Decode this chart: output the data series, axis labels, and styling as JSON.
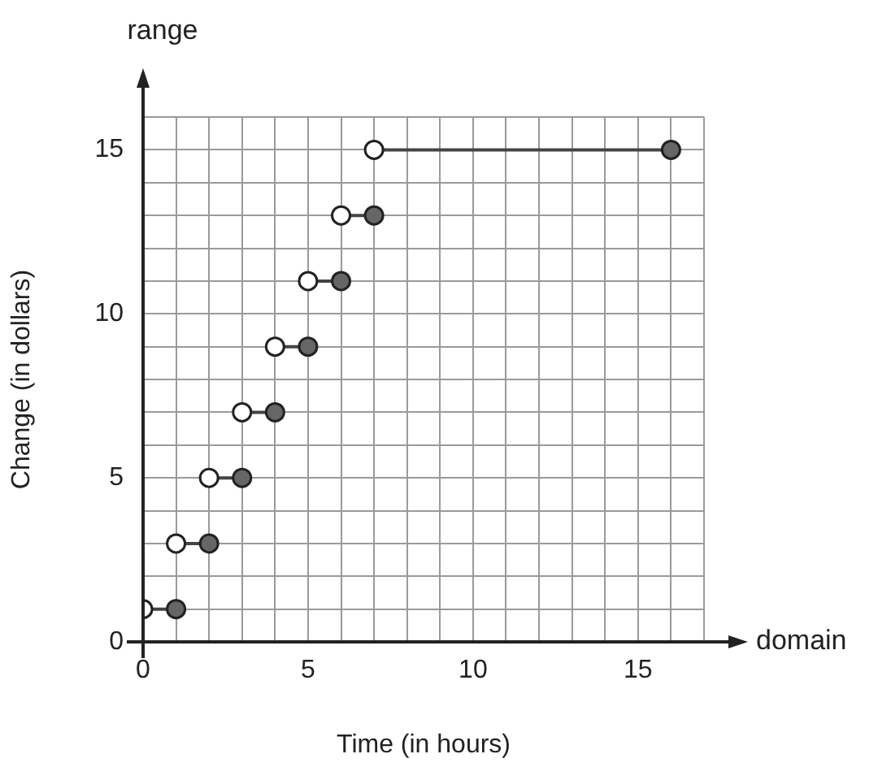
{
  "chart_data": {
    "type": "line",
    "xlabel": "Time (in hours)",
    "ylabel": "Change (in dollars)",
    "annotations": [
      "range",
      "domain"
    ],
    "xlim": [
      0,
      17
    ],
    "ylim": [
      0,
      16
    ],
    "xticks": [
      0,
      {
        "value": 1,
        "label": null
      },
      {
        "value": 2,
        "label": null
      },
      {
        "value": 3,
        "label": null
      },
      {
        "value": 4,
        "label": null
      },
      5,
      {
        "value": 6,
        "label": null
      },
      {
        "value": 7,
        "label": null
      },
      {
        "value": 8,
        "label": null
      },
      {
        "value": 9,
        "label": null
      },
      10,
      {
        "value": 11,
        "label": null
      },
      {
        "value": 12,
        "label": null
      },
      {
        "value": 13,
        "label": null
      },
      {
        "value": 14,
        "label": null
      },
      15,
      {
        "value": 16,
        "label": null
      },
      {
        "value": 17,
        "label": null
      }
    ],
    "yticks": [
      0,
      {
        "value": 1,
        "label": null
      },
      {
        "value": 2,
        "label": null
      },
      {
        "value": 3,
        "label": null
      },
      {
        "value": 4,
        "label": null
      },
      5,
      {
        "value": 6,
        "label": null
      },
      {
        "value": 7,
        "label": null
      },
      {
        "value": 8,
        "label": null
      },
      {
        "value": 9,
        "label": null
      },
      10,
      {
        "value": 11,
        "label": null
      },
      {
        "value": 12,
        "label": null
      },
      {
        "value": 13,
        "label": null
      },
      {
        "value": 14,
        "label": null
      },
      15,
      {
        "value": 16,
        "label": null
      }
    ],
    "grid": true,
    "legend": false,
    "series": [
      {
        "marker": "none",
        "color": "#444444",
        "x": [
          0,
          1
        ],
        "values": [
          1,
          1
        ]
      },
      {
        "marker": "none",
        "color": "#444444",
        "x": [
          1,
          2
        ],
        "values": [
          3,
          3
        ]
      },
      {
        "marker": "none",
        "color": "#444444",
        "x": [
          2,
          3
        ],
        "values": [
          5,
          5
        ]
      },
      {
        "marker": "none",
        "color": "#444444",
        "x": [
          3,
          4
        ],
        "values": [
          7,
          7
        ]
      },
      {
        "marker": "none",
        "color": "#444444",
        "x": [
          4,
          5
        ],
        "values": [
          9,
          9
        ]
      },
      {
        "marker": "none",
        "color": "#444444",
        "x": [
          5,
          6
        ],
        "values": [
          11,
          11
        ]
      },
      {
        "marker": "none",
        "color": "#444444",
        "x": [
          6,
          7
        ],
        "values": [
          13,
          13
        ]
      },
      {
        "marker": "none",
        "color": "#444444",
        "x": [
          7,
          16
        ],
        "values": [
          15,
          15
        ]
      },
      {
        "type": "scatter",
        "marker": "circle",
        "color": "#ffffff",
        "x": [
          0,
          1,
          2,
          3,
          4,
          5,
          6,
          7
        ],
        "values": [
          1,
          3,
          5,
          7,
          9,
          11,
          13,
          15
        ]
      },
      {
        "type": "scatter",
        "marker": "circle",
        "color": "#666666",
        "x": [
          1,
          2,
          3,
          4,
          5,
          6,
          7,
          16
        ],
        "values": [
          1,
          3,
          5,
          7,
          9,
          11,
          13,
          15
        ]
      }
    ]
  }
}
